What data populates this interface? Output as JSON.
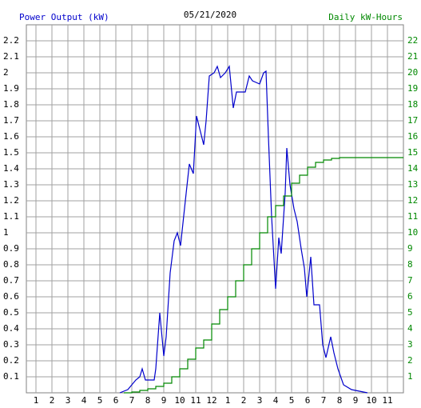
{
  "chart_data": {
    "type": "line",
    "title": "05/21/2020",
    "xlim": [
      0.4,
      24
    ],
    "ylim": [
      0,
      2.3
    ],
    "y2lim": [
      0,
      23
    ],
    "xticks": [
      1,
      2,
      3,
      4,
      5,
      6,
      7,
      8,
      9,
      10,
      11,
      12,
      {
        "value": 13,
        "label": "1"
      },
      {
        "value": 14,
        "label": "2"
      },
      {
        "value": 15,
        "label": "3"
      },
      {
        "value": 16,
        "label": "4"
      },
      {
        "value": 17,
        "label": "5"
      },
      {
        "value": 18,
        "label": "6"
      },
      {
        "value": 19,
        "label": "7"
      },
      {
        "value": 20,
        "label": "8"
      },
      {
        "value": 21,
        "label": "9"
      },
      {
        "value": 22,
        "label": "10"
      },
      {
        "value": 23,
        "label": "11"
      }
    ],
    "yticks": [
      0.1,
      0.2,
      0.3,
      0.4,
      0.5,
      0.6,
      0.7,
      0.8,
      0.9,
      1.0,
      1.1,
      1.2,
      1.3,
      1.4,
      1.5,
      1.6,
      1.7,
      1.8,
      1.9,
      2.0,
      2.1,
      2.2
    ],
    "y2ticks": [
      1,
      2,
      3,
      4,
      5,
      6,
      7,
      8,
      9,
      10,
      11,
      12,
      13,
      14,
      15,
      16,
      17,
      18,
      19,
      20,
      21,
      22
    ],
    "grid": true,
    "series": [
      {
        "name": "Power Output (kW)",
        "color": "#0000cc",
        "axis": "y",
        "step": false,
        "x": [
          6.25,
          6.75,
          7.0,
          7.25,
          7.5,
          7.65,
          7.85,
          8.4,
          8.5,
          8.75,
          9.0,
          9.15,
          9.4,
          9.65,
          9.85,
          10.05,
          10.35,
          10.6,
          10.85,
          11.05,
          11.25,
          11.5,
          11.65,
          11.85,
          12.15,
          12.35,
          12.55,
          12.85,
          13.1,
          13.35,
          13.55,
          14.1,
          14.35,
          14.55,
          15.0,
          15.25,
          15.4,
          15.55,
          15.75,
          16.0,
          16.2,
          16.35,
          16.6,
          16.7,
          16.9,
          17.15,
          17.35,
          17.6,
          17.8,
          17.95,
          18.2,
          18.4,
          18.75,
          18.95,
          19.15,
          19.45,
          19.65,
          19.9,
          20.25,
          20.75,
          21.75
        ],
        "values": [
          0.0,
          0.02,
          0.05,
          0.08,
          0.1,
          0.15,
          0.08,
          0.08,
          0.15,
          0.5,
          0.23,
          0.35,
          0.75,
          0.95,
          1.0,
          0.92,
          1.2,
          1.43,
          1.37,
          1.73,
          1.65,
          1.55,
          1.7,
          1.98,
          2.0,
          2.04,
          1.97,
          2.0,
          2.04,
          1.78,
          1.88,
          1.88,
          1.98,
          1.95,
          1.93,
          2.0,
          2.01,
          1.6,
          1.1,
          0.65,
          0.97,
          0.87,
          1.25,
          1.53,
          1.3,
          1.15,
          1.07,
          0.9,
          0.78,
          0.6,
          0.85,
          0.55,
          0.55,
          0.3,
          0.22,
          0.35,
          0.25,
          0.15,
          0.05,
          0.02,
          0.0
        ]
      },
      {
        "name": "Daily kW-Hours",
        "color": "#008800",
        "axis": "y2",
        "step": true,
        "x": [
          6.5,
          7.0,
          7.5,
          8.0,
          8.5,
          9.0,
          9.5,
          10.0,
          10.5,
          11.0,
          11.5,
          12.0,
          12.5,
          13.0,
          13.5,
          14.0,
          14.5,
          15.0,
          15.5,
          16.0,
          16.5,
          17.0,
          17.5,
          18.0,
          18.5,
          19.0,
          19.5,
          20.0,
          24.0
        ],
        "values": [
          0.0,
          0.05,
          0.15,
          0.25,
          0.4,
          0.6,
          1.0,
          1.5,
          2.1,
          2.8,
          3.3,
          4.3,
          5.2,
          6.0,
          7.0,
          8.0,
          9.0,
          10.0,
          11.0,
          11.7,
          12.3,
          13.1,
          13.6,
          14.1,
          14.4,
          14.55,
          14.65,
          14.7,
          14.7
        ]
      }
    ]
  }
}
